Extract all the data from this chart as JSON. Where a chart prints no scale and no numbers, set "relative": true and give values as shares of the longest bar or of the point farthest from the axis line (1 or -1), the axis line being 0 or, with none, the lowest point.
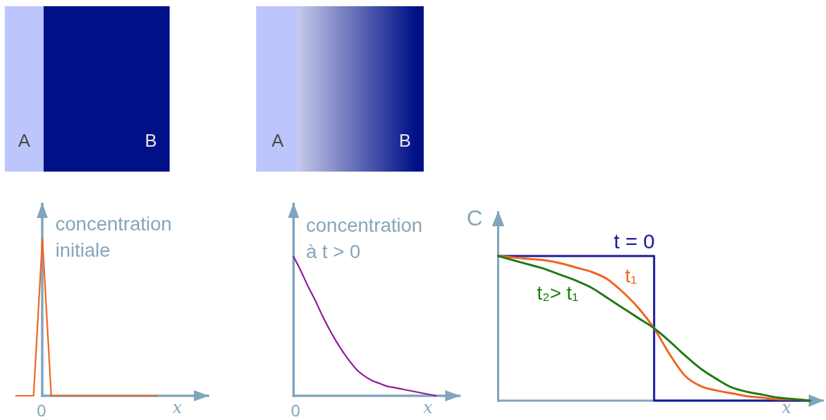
{
  "chart_data": [
    {
      "type": "line",
      "relative": true,
      "categories": [
        null,
        null,
        null,
        null,
        null,
        null,
        null,
        null,
        null,
        null,
        null,
        null,
        null,
        null,
        null,
        null,
        null
      ],
      "xlabel": "x",
      "ylabel": "concentration initiale",
      "annotations": [
        "A",
        "B",
        "0"
      ],
      "color": "#f0641e",
      "values": [
        0,
        0,
        0,
        1,
        0,
        0,
        0,
        0,
        0,
        0,
        0,
        0,
        0,
        0,
        0,
        0,
        0
      ]
    },
    {
      "type": "line",
      "relative": true,
      "categories": [
        null,
        null,
        null,
        null,
        null,
        null,
        null,
        null,
        null,
        null,
        null,
        null,
        null,
        null,
        null,
        null,
        null,
        null,
        null,
        null,
        null
      ],
      "xlabel": "x",
      "ylabel": "concentration à t > 0",
      "annotations": [
        "A",
        "B",
        "0"
      ],
      "color": "#8e1a9b",
      "values": [
        1,
        0.9,
        0.79,
        0.69,
        0.58,
        0.48,
        0.39,
        0.31,
        0.24,
        0.18,
        0.14,
        0.11,
        0.09,
        0.07,
        0.06,
        0.05,
        0.04,
        0.03,
        0.02,
        0.01,
        0
      ]
    },
    {
      "type": "line",
      "relative": true,
      "categories": [
        null,
        null,
        null,
        null,
        null,
        null,
        null,
        null,
        null,
        null,
        null,
        null,
        null,
        null,
        null,
        null,
        null,
        null,
        null,
        null,
        null
      ],
      "xlabel": "x",
      "ylabel": "C",
      "series": [
        {
          "name": "t = 0",
          "type": "step",
          "color": "#1a1a9a",
          "values": [
            1,
            1,
            1,
            1,
            1,
            1,
            1,
            1,
            1,
            1,
            0,
            0,
            0,
            0,
            0,
            0,
            0,
            0,
            0,
            0,
            0
          ]
        },
        {
          "name": "t₁",
          "color": "#f0641e",
          "values": [
            1,
            0.99,
            0.98,
            0.97,
            0.95,
            0.92,
            0.89,
            0.84,
            0.75,
            0.64,
            0.5,
            0.32,
            0.17,
            0.1,
            0.07,
            0.05,
            0.03,
            0.02,
            0.01,
            0.01,
            0
          ]
        },
        {
          "name": "t₂> t₁",
          "color": "#1f7a12",
          "values": [
            1,
            0.97,
            0.94,
            0.91,
            0.87,
            0.83,
            0.78,
            0.71,
            0.64,
            0.57,
            0.5,
            0.41,
            0.31,
            0.22,
            0.15,
            0.09,
            0.06,
            0.04,
            0.02,
            0.01,
            0
          ]
        }
      ]
    }
  ]
}
